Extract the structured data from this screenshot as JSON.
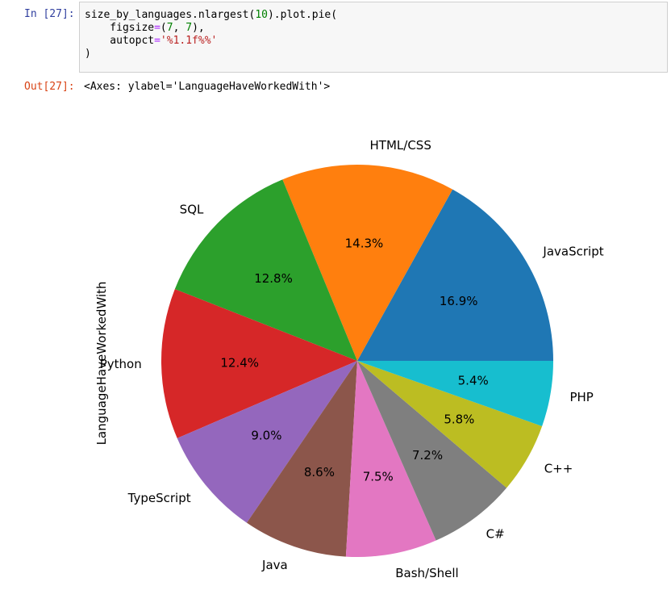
{
  "cell": {
    "input_prompt": "In [27]:",
    "output_prompt": "Out[27]:",
    "code_lines": [
      [
        {
          "t": "size_by_languages.nlargest("
        },
        {
          "t": "10",
          "c": "num"
        },
        {
          "t": ").plot.pie("
        }
      ],
      [
        {
          "t": "    figsize"
        },
        {
          "t": "=",
          "c": "op"
        },
        {
          "t": "("
        },
        {
          "t": "7",
          "c": "num"
        },
        {
          "t": ", "
        },
        {
          "t": "7",
          "c": "num"
        },
        {
          "t": "),"
        }
      ],
      [
        {
          "t": "    autopct"
        },
        {
          "t": "=",
          "c": "op"
        },
        {
          "t": "'%1.1f%%'",
          "c": "str"
        }
      ],
      [
        {
          "t": ")"
        }
      ]
    ],
    "output_text": "<Axes: ylabel='LanguageHaveWorkedWith'>"
  },
  "chart_data": {
    "type": "pie",
    "ylabel": "LanguageHaveWorkedWith",
    "start_angle_deg": 0,
    "direction": "counterclockwise",
    "slices": [
      {
        "label": "JavaScript",
        "pct_label": "16.9%",
        "value": 16.9,
        "color": "#1f77b4"
      },
      {
        "label": "HTML/CSS",
        "pct_label": "14.3%",
        "value": 14.3,
        "color": "#ff7f0e"
      },
      {
        "label": "SQL",
        "pct_label": "12.8%",
        "value": 12.8,
        "color": "#2ca02c"
      },
      {
        "label": "Python",
        "pct_label": "12.4%",
        "value": 12.4,
        "color": "#d62728"
      },
      {
        "label": "TypeScript",
        "pct_label": "9.0%",
        "value": 9.0,
        "color": "#9467bd"
      },
      {
        "label": "Java",
        "pct_label": "8.6%",
        "value": 8.6,
        "color": "#8c564b"
      },
      {
        "label": "Bash/Shell",
        "pct_label": "7.5%",
        "value": 7.5,
        "color": "#e377c2"
      },
      {
        "label": "C#",
        "pct_label": "7.2%",
        "value": 7.2,
        "color": "#7f7f7f"
      },
      {
        "label": "C++",
        "pct_label": "5.8%",
        "value": 5.8,
        "color": "#bcbd22"
      },
      {
        "label": "PHP",
        "pct_label": "5.4%",
        "value": 5.4,
        "color": "#17becf"
      }
    ]
  }
}
